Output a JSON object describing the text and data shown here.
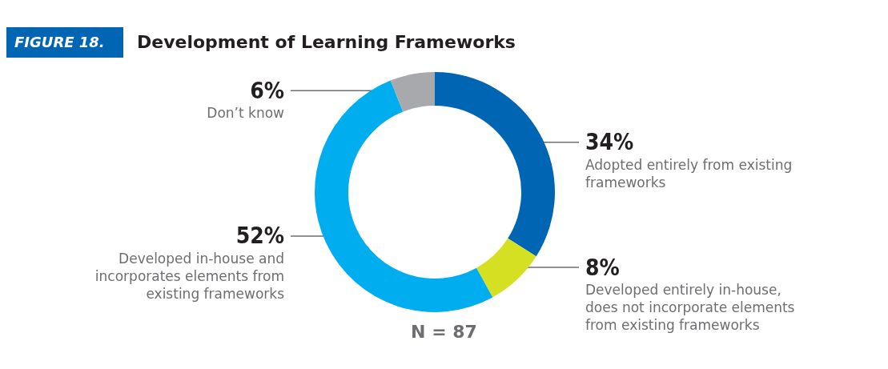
{
  "chart_data": {
    "type": "donut",
    "title": "Development of Learning Frameworks",
    "categories": [
      "Adopted entirely from existing frameworks",
      "Developed entirely in-house, does not incorporate elements from existing frameworks",
      "Developed in-house and incorporates elements from existing frameworks",
      "Don’t know"
    ],
    "values": [
      34,
      8,
      52,
      6
    ],
    "colors": [
      "#0066b3",
      "#d4e021",
      "#00aeef",
      "#a7a9ac"
    ],
    "value_labels": [
      "34%",
      "8%",
      "52%",
      "6%"
    ],
    "annotations": [
      "FIGURE 18.",
      "N = 87"
    ]
  }
}
